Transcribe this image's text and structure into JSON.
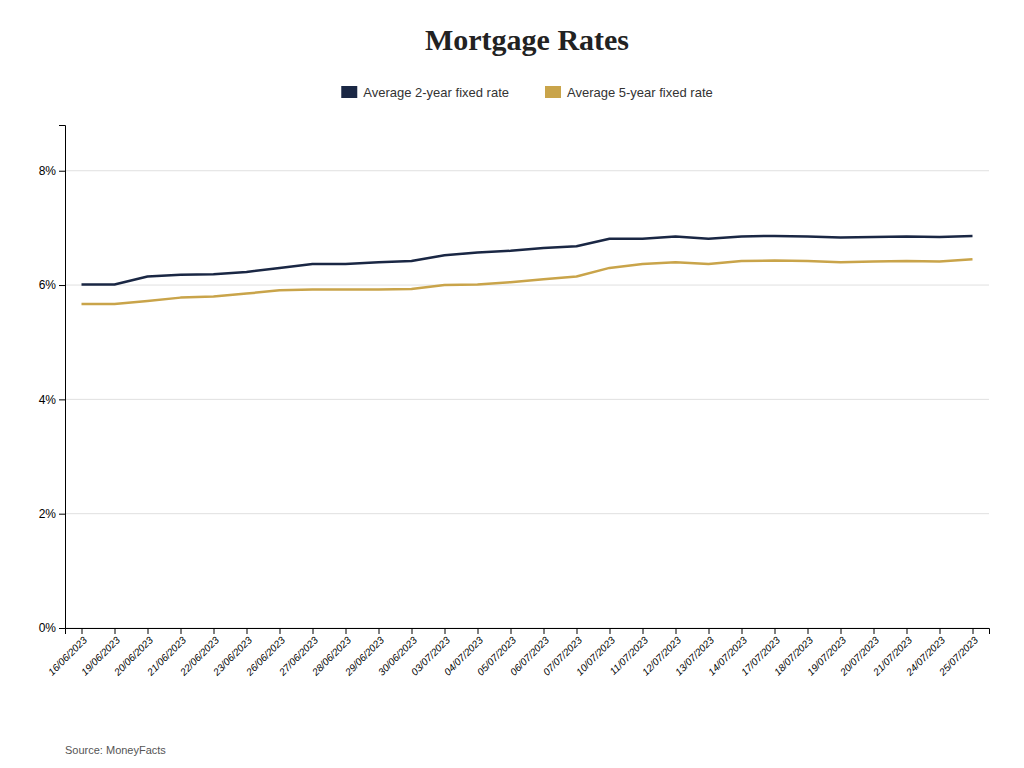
{
  "chart_data": {
    "type": "line",
    "title": "Mortgage Rates",
    "categories": [
      "16/06/2023",
      "19/06/2023",
      "20/06/2023",
      "21/06/2023",
      "22/06/2023",
      "23/06/2023",
      "26/06/2023",
      "27/06/2023",
      "28/06/2023",
      "29/06/2023",
      "30/06/2023",
      "03/07/2023",
      "04/07/2023",
      "05/07/2023",
      "06/07/2023",
      "07/07/2023",
      "10/07/2023",
      "11/07/2023",
      "12/07/2023",
      "13/07/2023",
      "14/07/2023",
      "17/07/2023",
      "18/07/2023",
      "19/07/2023",
      "20/07/2023",
      "21/07/2023",
      "24/07/2023",
      "25/07/2023"
    ],
    "series": [
      {
        "name": "Average 2-year fixed rate",
        "color": "#1a2744",
        "values": [
          6.01,
          6.01,
          6.15,
          6.18,
          6.19,
          6.23,
          6.3,
          6.37,
          6.37,
          6.4,
          6.42,
          6.52,
          6.57,
          6.6,
          6.65,
          6.68,
          6.81,
          6.81,
          6.85,
          6.81,
          6.85,
          6.86,
          6.85,
          6.83,
          6.84,
          6.85,
          6.84,
          6.86
        ]
      },
      {
        "name": "Average 5-year fixed rate",
        "color": "#c9a44a",
        "values": [
          5.67,
          5.67,
          5.72,
          5.78,
          5.8,
          5.85,
          5.91,
          5.92,
          5.92,
          5.92,
          5.93,
          6.0,
          6.01,
          6.05,
          6.1,
          6.15,
          6.3,
          6.37,
          6.4,
          6.37,
          6.42,
          6.43,
          6.42,
          6.4,
          6.41,
          6.42,
          6.41,
          6.45
        ]
      }
    ],
    "ylim": [
      0,
      8.8
    ],
    "yticks": [
      {
        "value": 0,
        "label": "0%"
      },
      {
        "value": 2,
        "label": "2%"
      },
      {
        "value": 4,
        "label": "4%"
      },
      {
        "value": 6,
        "label": "6%"
      },
      {
        "value": 8,
        "label": "8%"
      }
    ],
    "grid": true,
    "legend": "top",
    "annotations": [
      "Source: MoneyFacts"
    ]
  }
}
